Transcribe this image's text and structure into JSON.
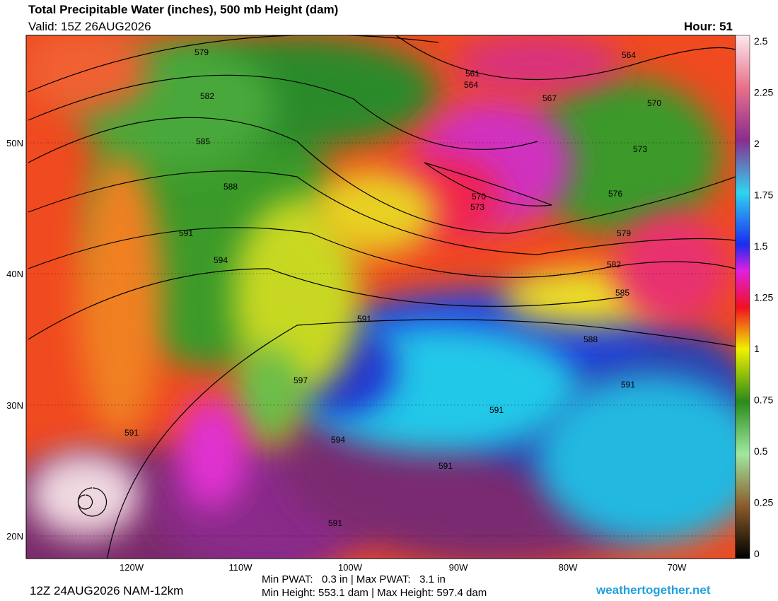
{
  "header": {
    "title": "Total Precipitable Water (inches), 500 mb Height (dam)",
    "valid": "Valid: 15Z 26AUG2026",
    "hour": "Hour: 51"
  },
  "map": {
    "lat_labels": [
      "50N",
      "40N",
      "30N",
      "20N"
    ],
    "lon_labels": [
      "120W",
      "110W",
      "100W",
      "90W",
      "80W",
      "70W"
    ],
    "contour_labels": [
      "579",
      "582",
      "585",
      "588",
      "591",
      "594",
      "591",
      "597",
      "594",
      "591",
      "591",
      "591",
      "591",
      "591",
      "588",
      "585",
      "582",
      "579",
      "576",
      "573",
      "570",
      "567",
      "564",
      "561",
      "564",
      "570",
      "573"
    ]
  },
  "colorbar": {
    "ticks": [
      "2.5",
      "2.25",
      "2",
      "1.75",
      "1.5",
      "1.25",
      "1",
      "0.75",
      "0.5",
      "0.25",
      "0"
    ]
  },
  "footer": {
    "run": "12Z 24AUG2026 NAM-12km",
    "stats": [
      "Min PWAT:   0.3 in | Max PWAT:   3.1 in",
      "Min Height: 553.1 dam | Max Height: 597.4 dam"
    ],
    "site": "weathertogether.net"
  }
}
